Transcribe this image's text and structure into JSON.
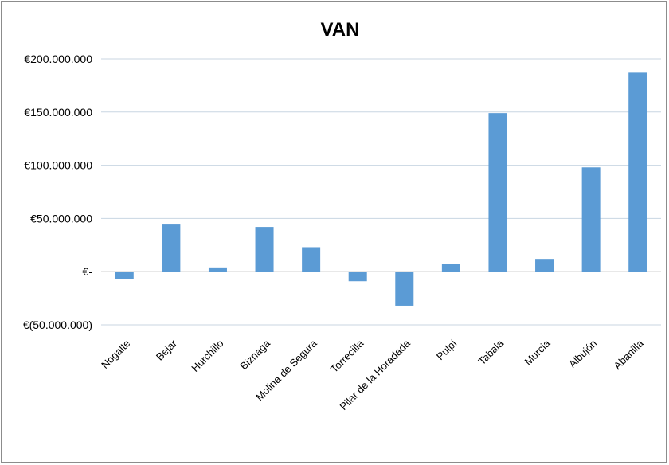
{
  "chart_data": {
    "type": "bar",
    "title": "VAN",
    "xlabel": "",
    "ylabel": "",
    "ylim": [
      -50000000,
      200000000
    ],
    "y_ticks": [
      {
        "value": 200000000,
        "label": "€200.000.000"
      },
      {
        "value": 150000000,
        "label": "€150.000.000"
      },
      {
        "value": 100000000,
        "label": "€100.000.000"
      },
      {
        "value": 50000000,
        "label": "€50.000.000"
      },
      {
        "value": 0,
        "label": "€-"
      },
      {
        "value": -50000000,
        "label": "€(50.000.000)"
      }
    ],
    "grid": true,
    "legend": "none",
    "bar_color": "#5b9bd5",
    "categories": [
      "Nogalte",
      "Bejar",
      "Hurchillo",
      "Biznaga",
      "Molina de Segura",
      "Torrecilla",
      "Pilar de la Horadada",
      "Pulpí",
      "Tabala",
      "Murcia",
      "Albujón",
      "Abanilla"
    ],
    "values": [
      -7000000,
      45000000,
      4000000,
      42000000,
      23000000,
      -9000000,
      -32000000,
      7000000,
      149000000,
      12000000,
      98000000,
      187000000
    ]
  }
}
